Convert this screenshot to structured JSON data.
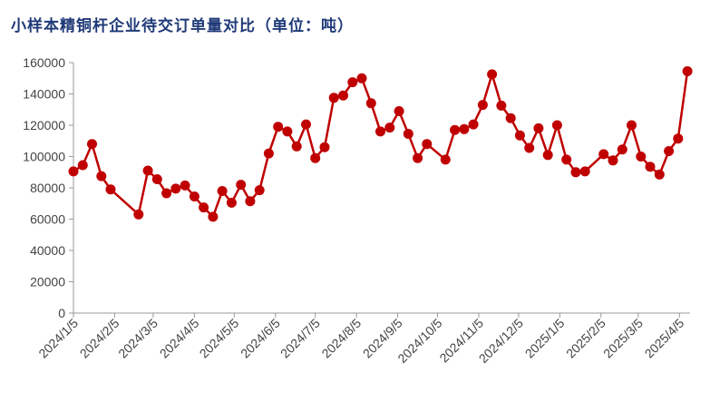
{
  "chart_data": {
    "type": "line",
    "title": "小样本精铜杆企业待交订单量对比（单位：吨）",
    "ylim": [
      0,
      160000
    ],
    "yticks": [
      0,
      20000,
      40000,
      60000,
      80000,
      100000,
      120000,
      140000,
      160000
    ],
    "ytick_labels": [
      "0",
      "20000",
      "40000",
      "60000",
      "80000",
      "100000",
      "120000",
      "140000",
      "160000"
    ],
    "x_start": "2024-01-05",
    "xticks": [
      "2024-01-05",
      "2024-02-05",
      "2024-03-05",
      "2024-04-05",
      "2024-05-05",
      "2024-06-05",
      "2024-07-05",
      "2024-08-05",
      "2024-09-05",
      "2024-10-05",
      "2024-11-05",
      "2024-12-05",
      "2025-01-05",
      "2025-02-05",
      "2025-03-05",
      "2025-04-05"
    ],
    "xtick_labels": [
      "2024/1/5",
      "2024/2/5",
      "2024/3/5",
      "2024/4/5",
      "2024/5/5",
      "2024/6/5",
      "2024/7/5",
      "2024/8/5",
      "2024/9/5",
      "2024/10/5",
      "2024/11/5",
      "2024/12/5",
      "2025/1/5",
      "2025/2/5",
      "2025/3/5",
      "2025/4/5"
    ],
    "series": [
      {
        "color": "#c00000",
        "points": [
          [
            "2024-01-05",
            90500
          ],
          [
            "2024-01-12",
            94500
          ],
          [
            "2024-01-19",
            108000
          ],
          [
            "2024-01-26",
            87500
          ],
          [
            "2024-02-02",
            79000
          ],
          [
            "2024-02-23",
            63000
          ],
          [
            "2024-03-01",
            91000
          ],
          [
            "2024-03-08",
            85500
          ],
          [
            "2024-03-15",
            76500
          ],
          [
            "2024-03-22",
            79500
          ],
          [
            "2024-03-29",
            81500
          ],
          [
            "2024-04-05",
            74500
          ],
          [
            "2024-04-12",
            67500
          ],
          [
            "2024-04-19",
            61500
          ],
          [
            "2024-04-26",
            78000
          ],
          [
            "2024-05-03",
            70500
          ],
          [
            "2024-05-10",
            82000
          ],
          [
            "2024-05-17",
            71500
          ],
          [
            "2024-05-24",
            78500
          ],
          [
            "2024-05-31",
            102000
          ],
          [
            "2024-06-07",
            119000
          ],
          [
            "2024-06-14",
            116000
          ],
          [
            "2024-06-21",
            106500
          ],
          [
            "2024-06-28",
            120500
          ],
          [
            "2024-07-05",
            99000
          ],
          [
            "2024-07-12",
            106000
          ],
          [
            "2024-07-19",
            137500
          ],
          [
            "2024-07-26",
            139000
          ],
          [
            "2024-08-02",
            147500
          ],
          [
            "2024-08-09",
            150000
          ],
          [
            "2024-08-16",
            134000
          ],
          [
            "2024-08-23",
            116000
          ],
          [
            "2024-08-30",
            118500
          ],
          [
            "2024-09-06",
            129000
          ],
          [
            "2024-09-13",
            114500
          ],
          [
            "2024-09-20",
            99000
          ],
          [
            "2024-09-27",
            108000
          ],
          [
            "2024-10-11",
            98000
          ],
          [
            "2024-10-18",
            117000
          ],
          [
            "2024-10-25",
            117500
          ],
          [
            "2024-11-01",
            120500
          ],
          [
            "2024-11-08",
            133000
          ],
          [
            "2024-11-15",
            152500
          ],
          [
            "2024-11-22",
            132500
          ],
          [
            "2024-11-29",
            124500
          ],
          [
            "2024-12-06",
            113500
          ],
          [
            "2024-12-13",
            105500
          ],
          [
            "2024-12-20",
            118000
          ],
          [
            "2024-12-27",
            101000
          ],
          [
            "2025-01-03",
            120000
          ],
          [
            "2025-01-10",
            98000
          ],
          [
            "2025-01-17",
            90000
          ],
          [
            "2025-01-24",
            90500
          ],
          [
            "2025-02-07",
            101500
          ],
          [
            "2025-02-14",
            97500
          ],
          [
            "2025-02-21",
            104500
          ],
          [
            "2025-02-28",
            120000
          ],
          [
            "2025-03-07",
            100000
          ],
          [
            "2025-03-14",
            93500
          ],
          [
            "2025-03-21",
            88500
          ],
          [
            "2025-03-28",
            103500
          ],
          [
            "2025-04-04",
            111500
          ],
          [
            "2025-04-11",
            154500
          ]
        ]
      }
    ],
    "grid": false,
    "legend": "none"
  }
}
